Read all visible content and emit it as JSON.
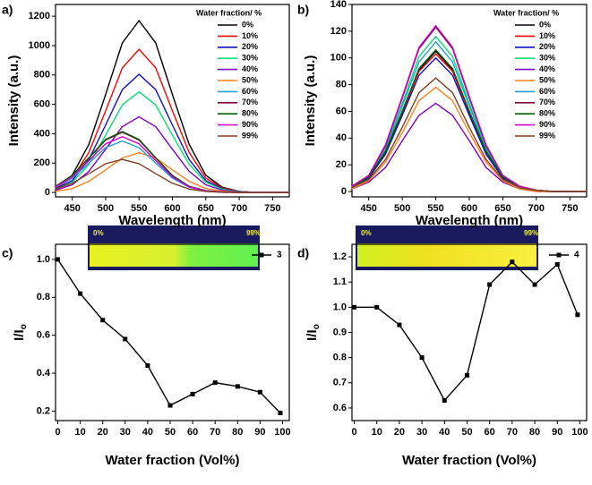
{
  "chart_data": [
    {
      "type": "line",
      "panel_label": "a)",
      "xlabel": "Wavelength (nm)",
      "ylabel": "Intensity (a.u.)",
      "legend_title": "Water fraction/ %",
      "x": [
        425,
        450,
        475,
        500,
        525,
        550,
        575,
        600,
        625,
        650,
        675,
        700,
        725,
        750,
        775
      ],
      "xlim": [
        425,
        775
      ],
      "xticks": [
        450,
        500,
        550,
        600,
        650,
        700,
        750
      ],
      "ylim": [
        -30,
        1280
      ],
      "yticks": [
        0,
        200,
        400,
        600,
        800,
        1000,
        1200
      ],
      "series": [
        {
          "name": "0%",
          "color": "#000000",
          "values": [
            35,
            117,
            328,
            667,
            1018,
            1170,
            1018,
            667,
            328,
            117,
            35,
            7,
            0,
            0,
            0
          ]
        },
        {
          "name": "10%",
          "color": "#ff0000",
          "values": [
            29,
            98,
            273,
            556,
            848,
            975,
            848,
            556,
            273,
            98,
            29,
            6,
            0,
            0,
            0
          ]
        },
        {
          "name": "20%",
          "color": "#1010c8",
          "values": [
            24,
            81,
            225,
            459,
            700,
            805,
            700,
            459,
            225,
            81,
            24,
            5,
            0,
            0,
            0
          ]
        },
        {
          "name": "30%",
          "color": "#00e070",
          "values": [
            21,
            69,
            192,
            390,
            596,
            685,
            596,
            390,
            192,
            69,
            21,
            4,
            0,
            0,
            0
          ]
        },
        {
          "name": "40%",
          "color": "#8000c8",
          "values": [
            15,
            52,
            144,
            294,
            448,
            515,
            448,
            294,
            144,
            52,
            15,
            3,
            0,
            0,
            0
          ]
        },
        {
          "name": "50%",
          "color": "#ff8020",
          "values": [
            8,
            27,
            76,
            154,
            235,
            270,
            235,
            154,
            76,
            27,
            8,
            2,
            0,
            0,
            0
          ]
        },
        {
          "name": "60%",
          "color": "#20a0d0",
          "values": [
            35,
            98,
            200,
            305,
            350,
            305,
            200,
            98,
            35,
            11,
            2,
            0,
            0,
            0,
            0
          ]
        },
        {
          "name": "70%",
          "color": "#800040",
          "values": [
            41,
            115,
            234,
            357,
            410,
            357,
            234,
            115,
            41,
            12,
            2,
            0,
            0,
            0,
            0
          ]
        },
        {
          "name": "80%",
          "color": "#006000",
          "values": [
            42,
            116,
            237,
            361,
            415,
            361,
            237,
            116,
            42,
            12,
            2,
            0,
            0,
            0,
            0
          ]
        },
        {
          "name": "90%",
          "color": "#d000d0",
          "values": [
            38,
            106,
            217,
            331,
            380,
            331,
            217,
            106,
            38,
            11,
            2,
            0,
            0,
            0,
            0
          ]
        },
        {
          "name": "99%",
          "color": "#804020",
          "values": [
            23,
            63,
            128,
            196,
            225,
            196,
            128,
            63,
            23,
            7,
            1,
            0,
            0,
            0,
            0
          ]
        }
      ]
    },
    {
      "type": "line",
      "panel_label": "b)",
      "xlabel": "Wavelength (nm)",
      "ylabel": "Intensity (a.u.)",
      "legend_title": "Water fraction/ %",
      "x": [
        425,
        450,
        475,
        500,
        525,
        550,
        575,
        600,
        625,
        650,
        675,
        700,
        725,
        750,
        775
      ],
      "xlim": [
        425,
        775
      ],
      "xticks": [
        450,
        500,
        550,
        600,
        650,
        700,
        750
      ],
      "ylim": [
        -4,
        140
      ],
      "yticks": [
        0,
        20,
        40,
        60,
        80,
        100,
        120,
        140
      ],
      "series": [
        {
          "name": "0%",
          "color": "#000000",
          "values": [
            3,
            11,
            29,
            60,
            91,
            105,
            91,
            60,
            29,
            11,
            3,
            1,
            0,
            0,
            0
          ]
        },
        {
          "name": "10%",
          "color": "#ff0000",
          "values": [
            3,
            10,
            29,
            59,
            90,
            103,
            90,
            59,
            29,
            10,
            3,
            1,
            0,
            0,
            0
          ]
        },
        {
          "name": "20%",
          "color": "#1010c8",
          "values": [
            3,
            10,
            28,
            57,
            87,
            100,
            87,
            57,
            28,
            10,
            3,
            1,
            0,
            0,
            0
          ]
        },
        {
          "name": "30%",
          "color": "#00e070",
          "values": [
            3,
            12,
            32,
            66,
            101,
            116,
            101,
            66,
            32,
            12,
            3,
            1,
            0,
            0,
            0
          ]
        },
        {
          "name": "40%",
          "color": "#8000c8",
          "values": [
            2,
            7,
            18,
            38,
            57,
            66,
            57,
            38,
            18,
            7,
            2,
            0,
            0,
            0,
            0
          ]
        },
        {
          "name": "50%",
          "color": "#ff8020",
          "values": [
            2,
            8,
            22,
            44,
            68,
            78,
            68,
            44,
            22,
            8,
            2,
            0,
            0,
            0,
            0
          ]
        },
        {
          "name": "60%",
          "color": "#20a0d0",
          "values": [
            3,
            11,
            31,
            64,
            97,
            112,
            97,
            64,
            31,
            11,
            3,
            1,
            0,
            0,
            0
          ]
        },
        {
          "name": "70%",
          "color": "#800040",
          "values": [
            4,
            12,
            34,
            70,
            107,
            123,
            107,
            70,
            34,
            12,
            4,
            1,
            0,
            0,
            0
          ]
        },
        {
          "name": "80%",
          "color": "#006000",
          "values": [
            3,
            11,
            30,
            60,
            92,
            106,
            92,
            60,
            30,
            11,
            3,
            1,
            0,
            0,
            0
          ]
        },
        {
          "name": "90%",
          "color": "#d000d0",
          "values": [
            4,
            12,
            35,
            71,
            108,
            124,
            108,
            71,
            35,
            12,
            4,
            1,
            0,
            0,
            0
          ]
        },
        {
          "name": "99%",
          "color": "#804020",
          "values": [
            3,
            9,
            24,
            48,
            74,
            85,
            74,
            48,
            24,
            9,
            3,
            1,
            0,
            0,
            0
          ]
        }
      ]
    },
    {
      "type": "line",
      "panel_label": "c)",
      "xlabel": "Water fraction (Vol%)",
      "ylabel": "I/I",
      "ylabel_subscript": "o",
      "markers": true,
      "inset_labels": [
        "0%",
        "99%"
      ],
      "x": [
        0,
        10,
        20,
        30,
        40,
        50,
        60,
        70,
        80,
        90,
        99
      ],
      "xlim": [
        -1,
        103
      ],
      "xticks": [
        0,
        10,
        20,
        30,
        40,
        50,
        60,
        70,
        80,
        90,
        100
      ],
      "ylim": [
        0.15,
        1.08
      ],
      "yticks": [
        0.2,
        0.4,
        0.6,
        0.8,
        {
          "value": 1,
          "label": "1.0"
        }
      ],
      "series": [
        {
          "name": "3",
          "color": "#000000",
          "values": [
            1.0,
            0.82,
            0.68,
            0.58,
            0.44,
            0.23,
            0.29,
            0.35,
            0.33,
            0.3,
            0.19
          ]
        }
      ]
    },
    {
      "type": "line",
      "panel_label": "d)",
      "xlabel": "Water fraction (Vol%)",
      "ylabel": "I/I",
      "ylabel_subscript": "o",
      "markers": true,
      "inset_labels": [
        "0%",
        "99%"
      ],
      "x": [
        0,
        10,
        20,
        30,
        40,
        50,
        60,
        70,
        80,
        90,
        99
      ],
      "xlim": [
        -1,
        103
      ],
      "xticks": [
        0,
        10,
        20,
        30,
        40,
        50,
        60,
        70,
        80,
        90,
        100
      ],
      "ylim": [
        0.55,
        1.25
      ],
      "yticks": [
        0.6,
        0.7,
        0.8,
        0.9,
        {
          "value": 1,
          "label": "1.0"
        },
        1.1,
        1.2
      ],
      "series": [
        {
          "name": "4",
          "color": "#000000",
          "values": [
            1.0,
            1.0,
            0.93,
            0.8,
            0.63,
            0.73,
            1.09,
            1.18,
            1.09,
            1.17,
            0.97
          ]
        }
      ]
    }
  ]
}
